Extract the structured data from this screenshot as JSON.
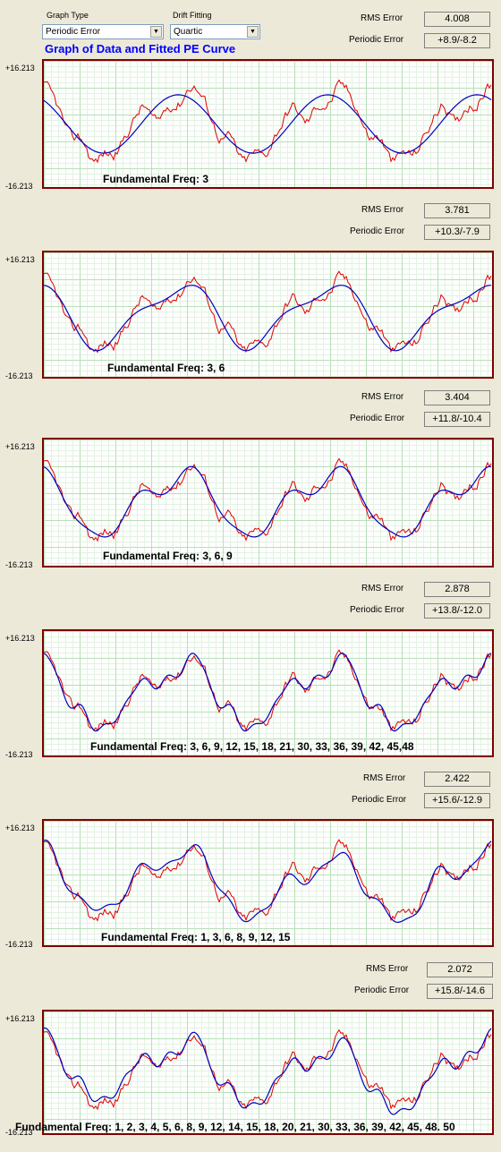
{
  "controls": {
    "graph_type_label": "Graph Type",
    "graph_type_value": "Periodic Error",
    "drift_label": "Drift Fitting",
    "drift_value": "Quartic"
  },
  "title": "Graph of Data and Fitted PE Curve",
  "labels": {
    "rms": "RMS Error",
    "periodic": "Periodic Error"
  },
  "axis": {
    "top": "+16.213",
    "bottom": "-16.213"
  },
  "panels": [
    {
      "rms": "4.008",
      "periodic": "+8.9/-8.2",
      "freq": "Fundamental Freq:  3"
    },
    {
      "rms": "3.781",
      "periodic": "+10.3/-7.9",
      "freq": "Fundamental Freq:  3, 6"
    },
    {
      "rms": "3.404",
      "periodic": "+11.8/-10.4",
      "freq": "Fundamental Freq:  3, 6, 9"
    },
    {
      "rms": "2.878",
      "periodic": "+13.8/-12.0",
      "freq": "Fundamental Freq:  3, 6, 9, 12, 15, 18, 21, 30, 33, 36, 39, 42, 45,48"
    },
    {
      "rms": "2.422",
      "periodic": "+15.6/-12.9",
      "freq": "Fundamental Freq:  1, 3, 6, 8, 9, 12, 15"
    },
    {
      "rms": "2.072",
      "periodic": "+15.8/-14.6",
      "freq": "Fundamental Freq:  1, 2, 3, 4, 5, 6, 8, 9, 12, 14, 15, 18, 20, 21, 30, 33, 36, 39, 42, 45, 48. 50"
    }
  ],
  "colors": {
    "data": "#e00000",
    "fit": "#0000c0",
    "title": "#0000ff",
    "frame": "#800000"
  }
}
